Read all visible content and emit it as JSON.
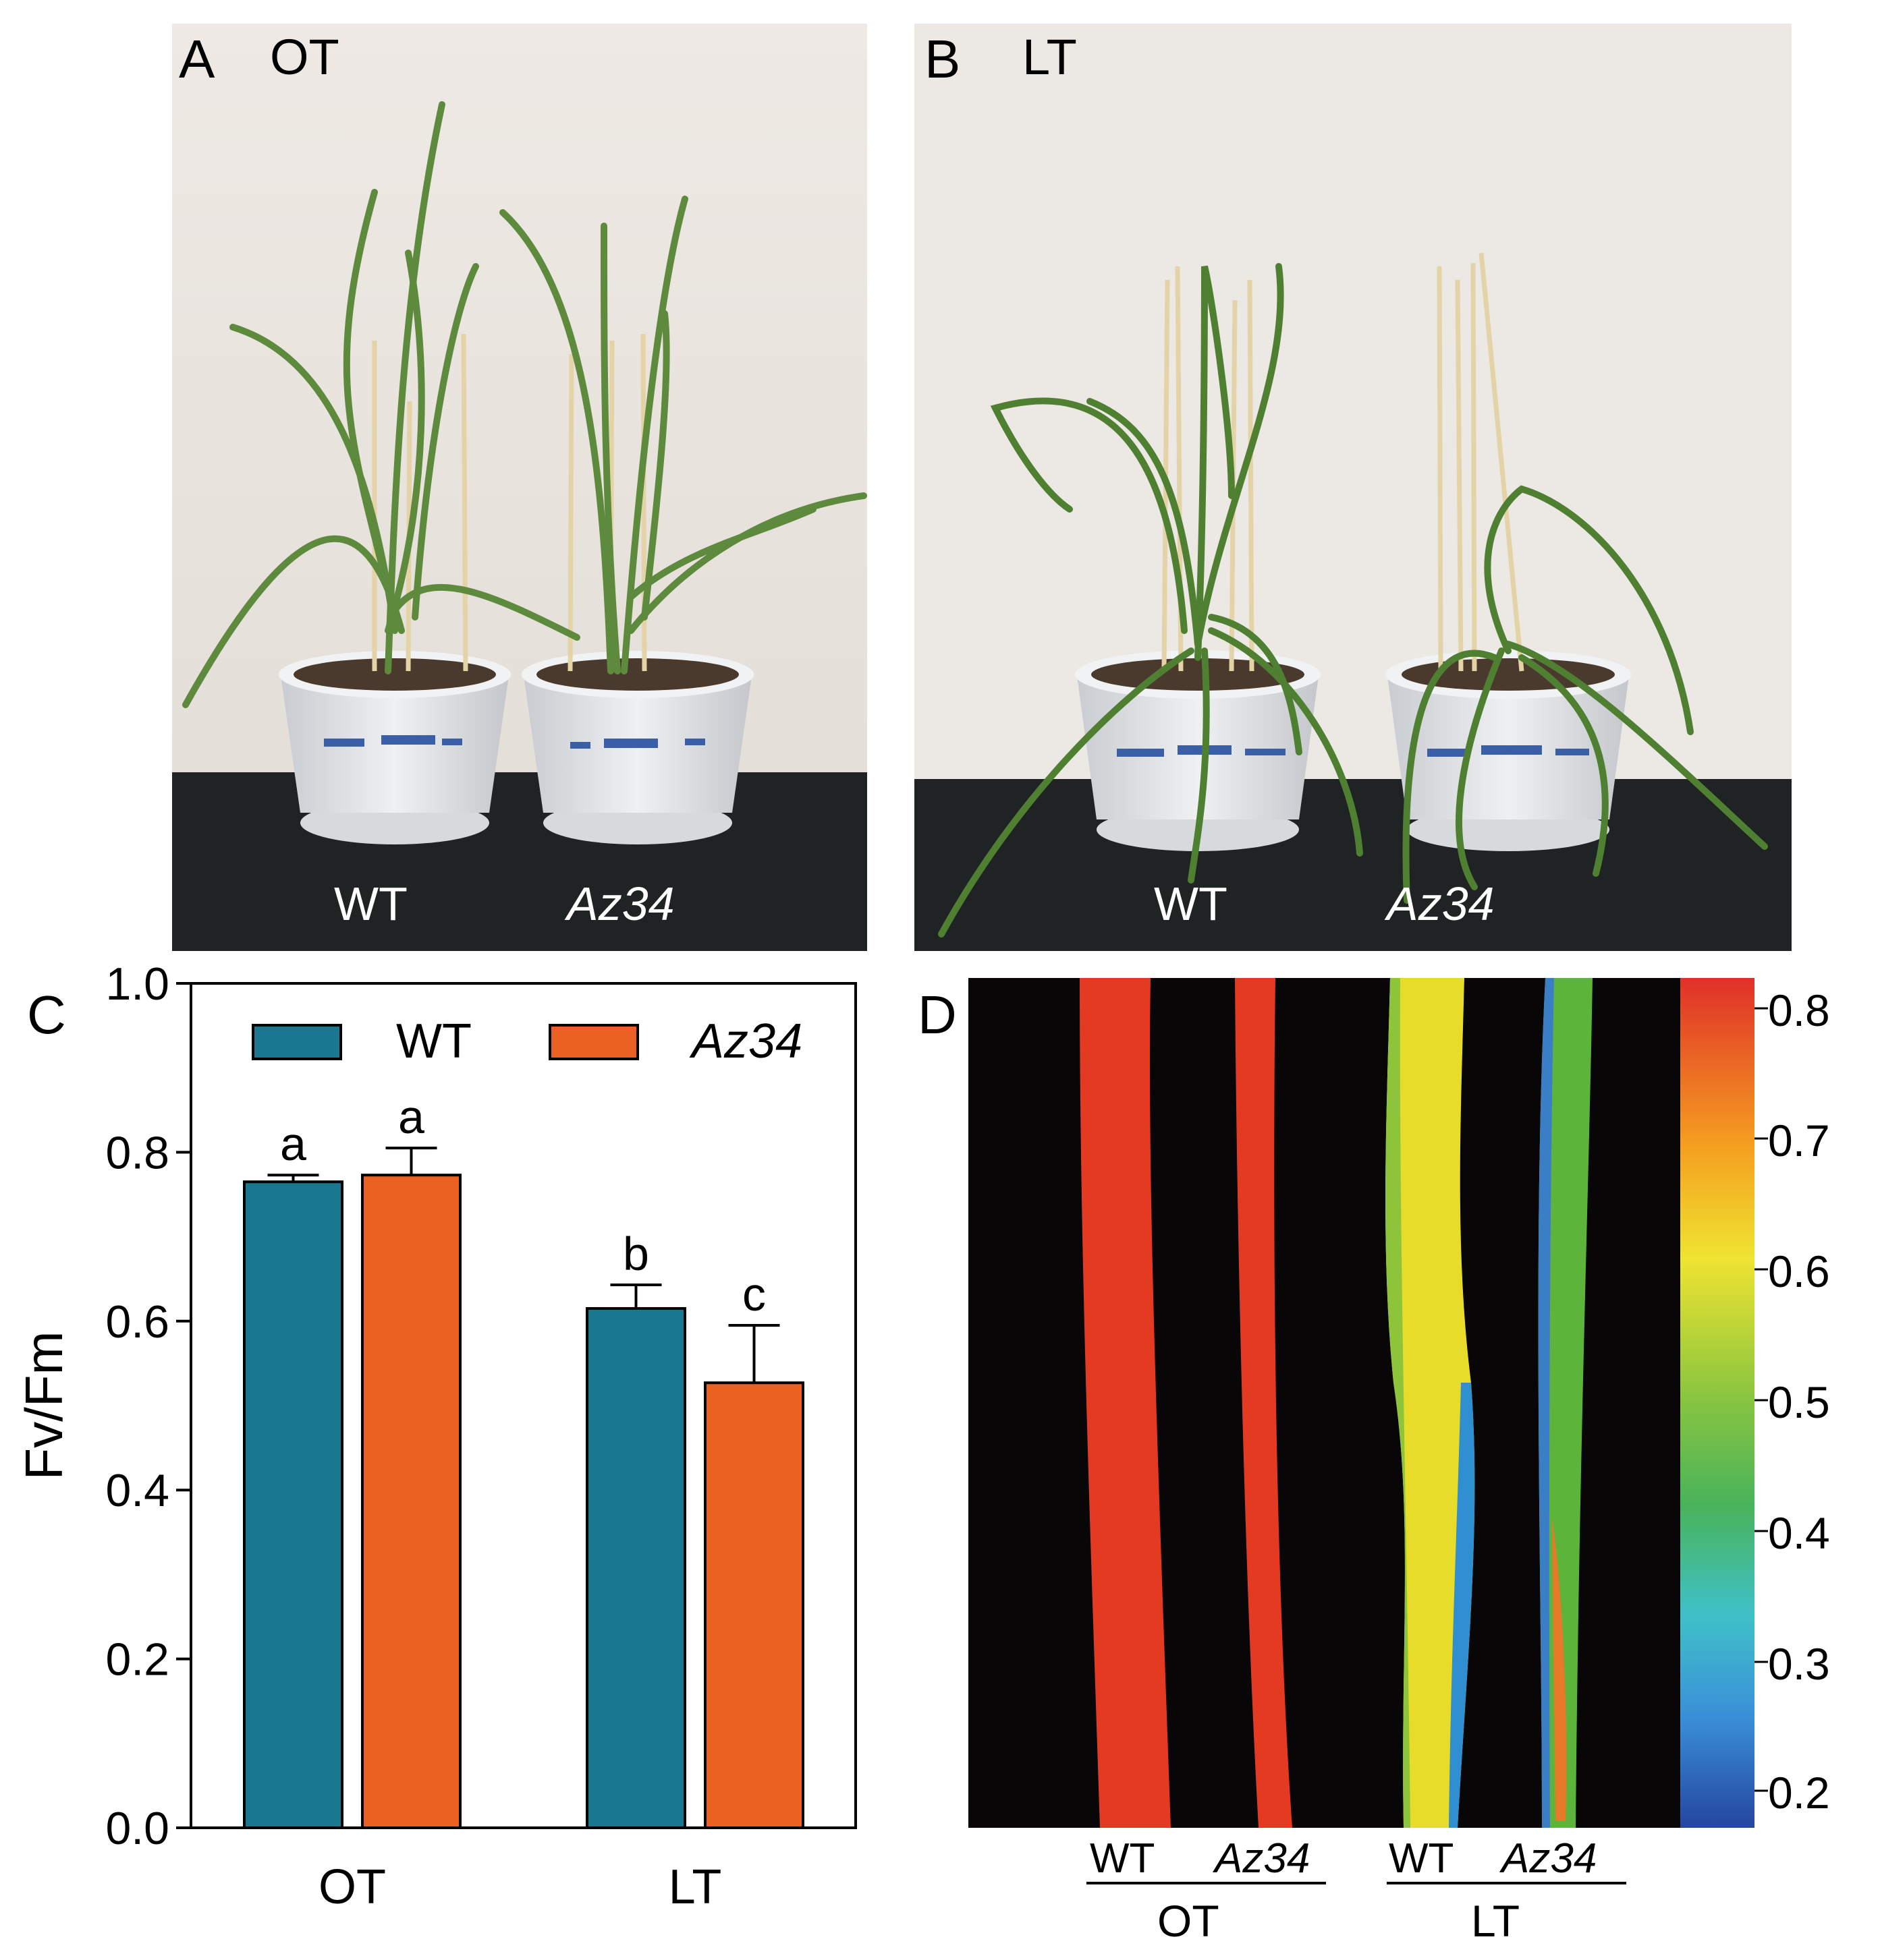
{
  "panels": {
    "A": {
      "letter": "A",
      "condition": "OT",
      "labels": [
        "WT",
        "Az34"
      ]
    },
    "B": {
      "letter": "B",
      "condition": "LT",
      "labels": [
        "WT",
        "Az34"
      ]
    },
    "C": {
      "letter": "C"
    },
    "D": {
      "letter": "D",
      "bottom_labels": [
        "WT",
        "Az34",
        "WT",
        "Az34"
      ],
      "groups": [
        "OT",
        "LT"
      ],
      "colorbar_ticks": [
        "0.8",
        "0.7",
        "0.6",
        "0.5",
        "0.4",
        "0.3",
        "0.2"
      ]
    }
  },
  "chart_data": {
    "type": "bar",
    "categories": [
      "OT",
      "LT"
    ],
    "ylabel": "Fv/Fm",
    "ylim": [
      0,
      1.0
    ],
    "yticks": [
      "0.0",
      "0.2",
      "0.4",
      "0.6",
      "0.8",
      "1.0"
    ],
    "legend_position": "top",
    "series": [
      {
        "name": "WT",
        "color": "#197890",
        "values": [
          0.765,
          0.615
        ],
        "errors": [
          0.008,
          0.028
        ],
        "letters": [
          "a",
          "b"
        ]
      },
      {
        "name": "Az34",
        "color": "#ea6121",
        "values": [
          0.773,
          0.527
        ],
        "errors": [
          0.032,
          0.068
        ],
        "letters": [
          "a",
          "c"
        ]
      }
    ]
  },
  "colors": {
    "wt_bar": "#197890",
    "az34_bar": "#ea6121"
  }
}
